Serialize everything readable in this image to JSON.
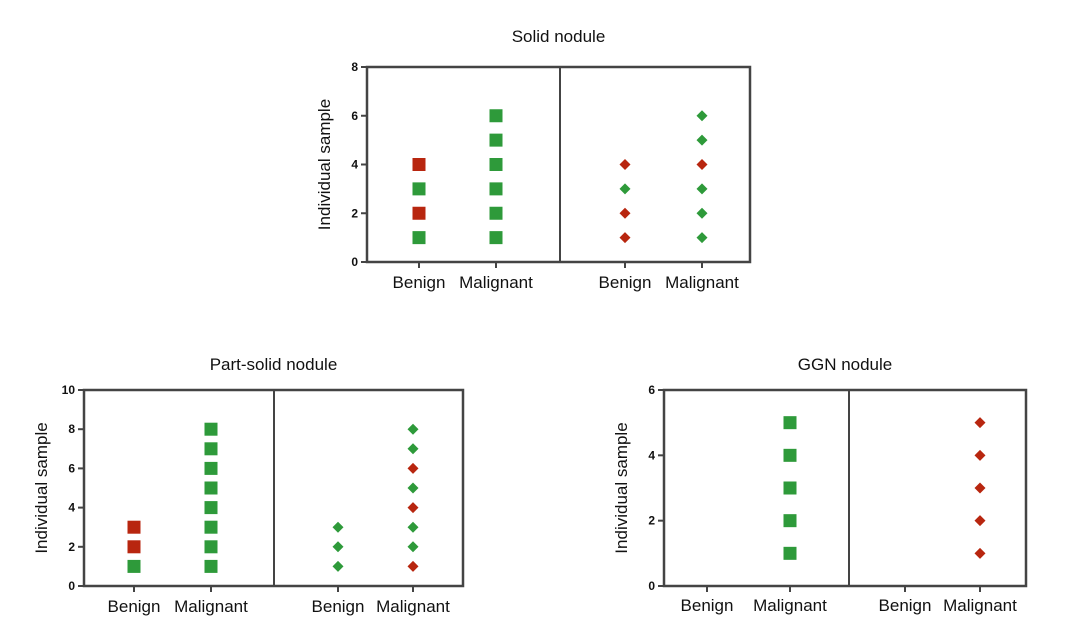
{
  "colors": {
    "green": "#2e9a3a",
    "red": "#b8260f",
    "axis": "#444444"
  },
  "chart_data": [
    {
      "type": "scatter",
      "title": "Solid nodule",
      "ylabel": "Individual sample",
      "ylim": [
        0,
        8
      ],
      "yticks": [
        0,
        2,
        4,
        6,
        8
      ],
      "panels": [
        {
          "marker": "square",
          "groups": [
            {
              "label": "Benign",
              "points": [
                {
                  "y": 1,
                  "color": "green"
                },
                {
                  "y": 2,
                  "color": "red"
                },
                {
                  "y": 3,
                  "color": "green"
                },
                {
                  "y": 4,
                  "color": "red"
                }
              ]
            },
            {
              "label": "Malignant",
              "points": [
                {
                  "y": 1,
                  "color": "green"
                },
                {
                  "y": 2,
                  "color": "green"
                },
                {
                  "y": 3,
                  "color": "green"
                },
                {
                  "y": 4,
                  "color": "green"
                },
                {
                  "y": 5,
                  "color": "green"
                },
                {
                  "y": 6,
                  "color": "green"
                }
              ]
            }
          ]
        },
        {
          "marker": "diamond",
          "groups": [
            {
              "label": "Benign",
              "points": [
                {
                  "y": 1,
                  "color": "red"
                },
                {
                  "y": 2,
                  "color": "red"
                },
                {
                  "y": 3,
                  "color": "green"
                },
                {
                  "y": 4,
                  "color": "red"
                }
              ]
            },
            {
              "label": "Malignant",
              "points": [
                {
                  "y": 1,
                  "color": "green"
                },
                {
                  "y": 2,
                  "color": "green"
                },
                {
                  "y": 3,
                  "color": "green"
                },
                {
                  "y": 4,
                  "color": "red"
                },
                {
                  "y": 5,
                  "color": "green"
                },
                {
                  "y": 6,
                  "color": "green"
                }
              ]
            }
          ]
        }
      ]
    },
    {
      "type": "scatter",
      "title": "Part-solid nodule",
      "ylabel": "Individual sample",
      "ylim": [
        0,
        10
      ],
      "yticks": [
        0,
        2,
        4,
        6,
        8,
        10
      ],
      "panels": [
        {
          "marker": "square",
          "groups": [
            {
              "label": "Benign",
              "points": [
                {
                  "y": 1,
                  "color": "green"
                },
                {
                  "y": 2,
                  "color": "red"
                },
                {
                  "y": 3,
                  "color": "red"
                }
              ]
            },
            {
              "label": "Malignant",
              "points": [
                {
                  "y": 1,
                  "color": "green"
                },
                {
                  "y": 2,
                  "color": "green"
                },
                {
                  "y": 3,
                  "color": "green"
                },
                {
                  "y": 4,
                  "color": "green"
                },
                {
                  "y": 5,
                  "color": "green"
                },
                {
                  "y": 6,
                  "color": "green"
                },
                {
                  "y": 7,
                  "color": "green"
                },
                {
                  "y": 8,
                  "color": "green"
                }
              ]
            }
          ]
        },
        {
          "marker": "diamond",
          "groups": [
            {
              "label": "Benign",
              "points": [
                {
                  "y": 1,
                  "color": "green"
                },
                {
                  "y": 2,
                  "color": "green"
                },
                {
                  "y": 3,
                  "color": "green"
                }
              ]
            },
            {
              "label": "Malignant",
              "points": [
                {
                  "y": 1,
                  "color": "red"
                },
                {
                  "y": 2,
                  "color": "green"
                },
                {
                  "y": 3,
                  "color": "green"
                },
                {
                  "y": 4,
                  "color": "red"
                },
                {
                  "y": 5,
                  "color": "green"
                },
                {
                  "y": 6,
                  "color": "red"
                },
                {
                  "y": 7,
                  "color": "green"
                },
                {
                  "y": 8,
                  "color": "green"
                }
              ]
            }
          ]
        }
      ]
    },
    {
      "type": "scatter",
      "title": "GGN nodule",
      "ylabel": "Individual sample",
      "ylim": [
        0,
        6
      ],
      "yticks": [
        0,
        2,
        4,
        6
      ],
      "panels": [
        {
          "marker": "square",
          "groups": [
            {
              "label": "Benign",
              "points": []
            },
            {
              "label": "Malignant",
              "points": [
                {
                  "y": 1,
                  "color": "green"
                },
                {
                  "y": 2,
                  "color": "green"
                },
                {
                  "y": 3,
                  "color": "green"
                },
                {
                  "y": 4,
                  "color": "green"
                },
                {
                  "y": 5,
                  "color": "green"
                }
              ]
            }
          ]
        },
        {
          "marker": "diamond",
          "groups": [
            {
              "label": "Benign",
              "points": []
            },
            {
              "label": "Malignant",
              "points": [
                {
                  "y": 1,
                  "color": "red"
                },
                {
                  "y": 2,
                  "color": "red"
                },
                {
                  "y": 3,
                  "color": "red"
                },
                {
                  "y": 4,
                  "color": "red"
                },
                {
                  "y": 5,
                  "color": "red"
                }
              ]
            }
          ]
        }
      ]
    }
  ]
}
